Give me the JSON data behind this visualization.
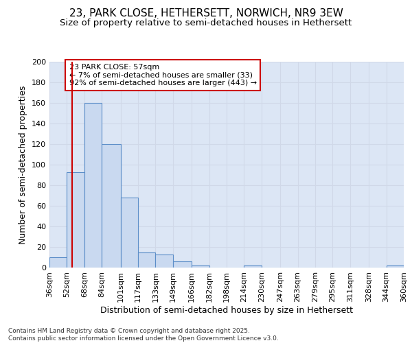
{
  "title1": "23, PARK CLOSE, HETHERSETT, NORWICH, NR9 3EW",
  "title2": "Size of property relative to semi-detached houses in Hethersett",
  "xlabel": "Distribution of semi-detached houses by size in Hethersett",
  "ylabel": "Number of semi-detached properties",
  "bin_labels": [
    "36sqm",
    "52sqm",
    "68sqm",
    "84sqm",
    "101sqm",
    "117sqm",
    "133sqm",
    "149sqm",
    "166sqm",
    "182sqm",
    "198sqm",
    "214sqm",
    "230sqm",
    "247sqm",
    "263sqm",
    "279sqm",
    "295sqm",
    "311sqm",
    "328sqm",
    "344sqm",
    "360sqm"
  ],
  "bin_edges": [
    36,
    52,
    68,
    84,
    101,
    117,
    133,
    149,
    166,
    182,
    198,
    214,
    230,
    247,
    263,
    279,
    295,
    311,
    328,
    344,
    360
  ],
  "bar_values": [
    10,
    93,
    160,
    120,
    68,
    15,
    13,
    6,
    2,
    0,
    0,
    2,
    0,
    0,
    0,
    0,
    0,
    0,
    0,
    2
  ],
  "bar_color": "#c9d9f0",
  "bar_edge_color": "#5b8dc8",
  "property_size": 57,
  "property_label": "23 PARK CLOSE: 57sqm",
  "pct_smaller": 7,
  "pct_larger": 92,
  "n_smaller": 33,
  "n_larger": 443,
  "red_line_color": "#cc0000",
  "annotation_box_edge": "#cc0000",
  "ylim": [
    0,
    200
  ],
  "yticks": [
    0,
    20,
    40,
    60,
    80,
    100,
    120,
    140,
    160,
    180,
    200
  ],
  "grid_color": "#d0d8e8",
  "background_color": "#dce6f5",
  "footer1": "Contains HM Land Registry data © Crown copyright and database right 2025.",
  "footer2": "Contains public sector information licensed under the Open Government Licence v3.0.",
  "title1_fontsize": 11,
  "title2_fontsize": 9.5,
  "axis_fontsize": 9,
  "tick_fontsize": 8,
  "ann_fontsize": 8
}
